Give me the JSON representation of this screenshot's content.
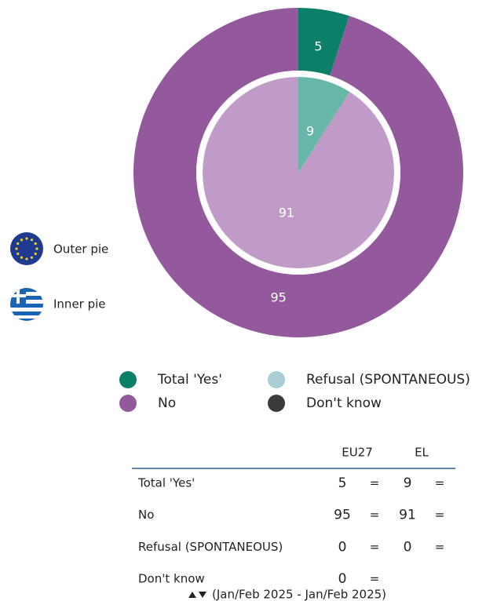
{
  "chart_data": {
    "type": "pie",
    "categories": [
      "Total 'Yes'",
      "No",
      "Refusal (SPONTANEOUS)",
      "Don't know"
    ],
    "series": [
      {
        "name": "EU27",
        "ring": "Outer pie",
        "values": [
          5,
          95,
          0,
          0
        ],
        "colors": [
          "#0b7f68",
          "#93599c",
          "#a9cdd5",
          "#3a3a3a"
        ]
      },
      {
        "name": "EL",
        "ring": "Inner pie",
        "values": [
          9,
          91,
          0,
          null
        ],
        "colors": [
          "#67b7a8",
          "#c09bc8",
          "#c9e2e7",
          "#777777"
        ]
      }
    ],
    "trends": [
      [
        "=",
        "="
      ],
      [
        "=",
        "="
      ],
      [
        "=",
        "="
      ],
      [
        "=",
        null
      ]
    ],
    "period": "(Jan/Feb 2025 - Jan/Feb 2025)"
  }
}
